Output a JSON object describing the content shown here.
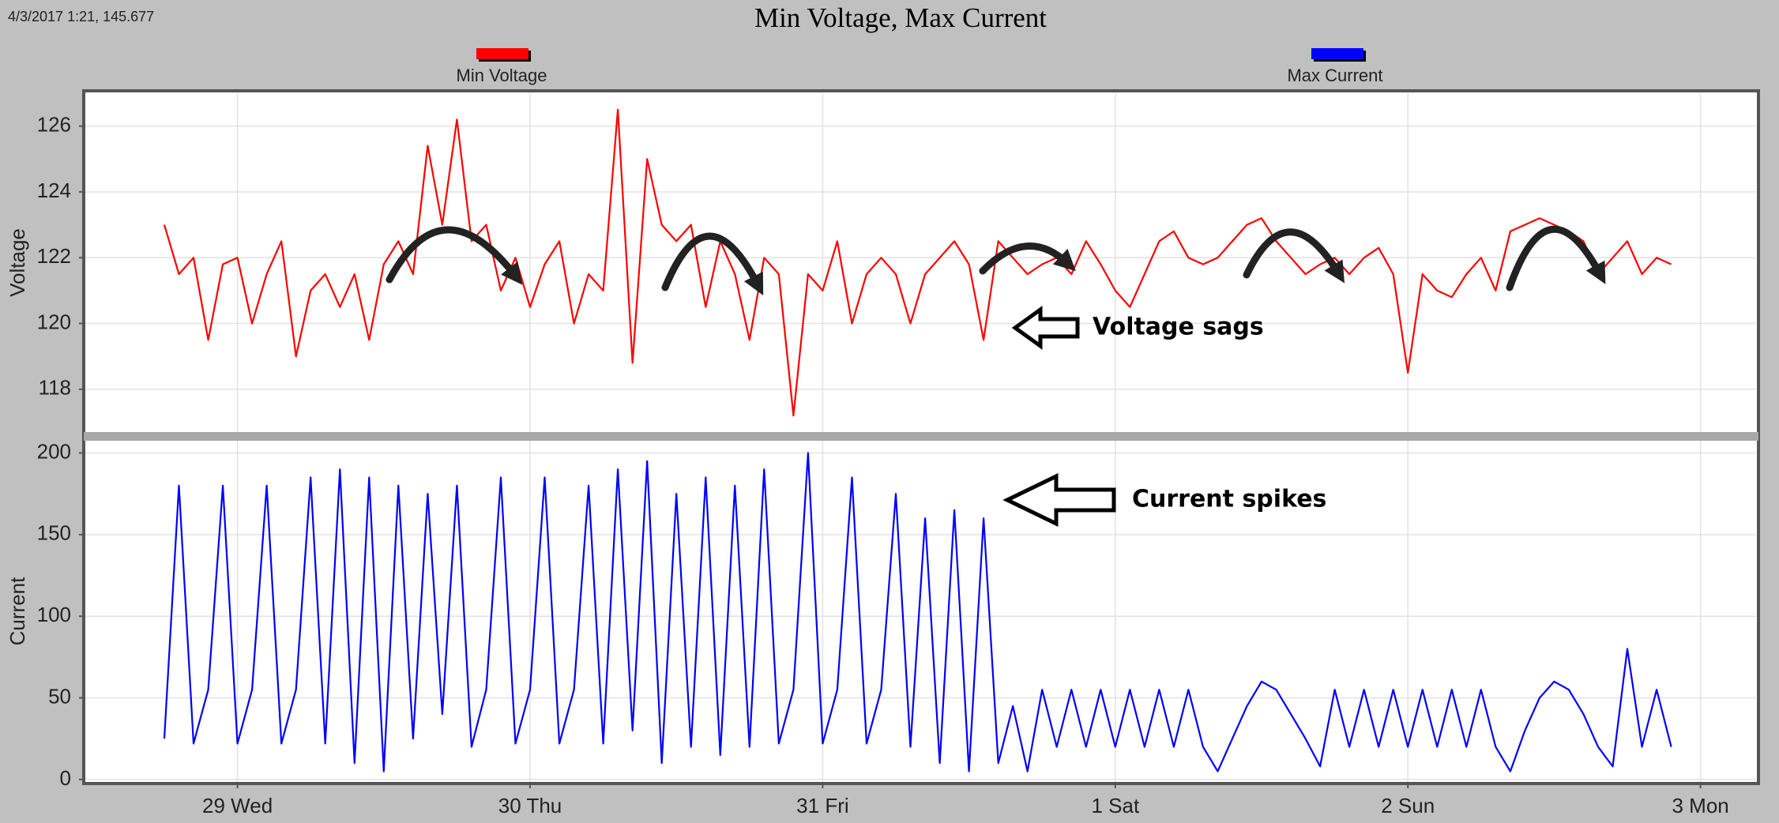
{
  "title": "Min Voltage, Max Current",
  "timestamp": "4/3/2017 1:21, 145.677",
  "chart_data": [
    {
      "type": "line",
      "ylabel": "Voltage",
      "annotation": "Voltage sags",
      "grid": true,
      "xlim": [
        -0.52,
        5.19
      ],
      "ylim": [
        116.7,
        127
      ],
      "yticks": [
        118,
        120,
        122,
        124,
        126
      ],
      "x": [
        -0.25,
        -0.2,
        -0.15,
        -0.1,
        -0.05,
        0,
        0.05,
        0.1,
        0.15,
        0.2,
        0.25,
        0.3,
        0.35,
        0.4,
        0.45,
        0.5,
        0.55,
        0.6,
        0.65,
        0.7,
        0.75,
        0.8,
        0.85,
        0.9,
        0.95,
        1,
        1.05,
        1.1,
        1.15,
        1.2,
        1.25,
        1.3,
        1.35,
        1.4,
        1.45,
        1.5,
        1.55,
        1.6,
        1.65,
        1.7,
        1.75,
        1.8,
        1.85,
        1.9,
        1.95,
        2,
        2.05,
        2.1,
        2.15,
        2.2,
        2.25,
        2.3,
        2.35,
        2.4,
        2.45,
        2.5,
        2.55,
        2.6,
        2.65,
        2.7,
        2.75,
        2.8,
        2.85,
        2.9,
        2.95,
        3,
        3.05,
        3.1,
        3.15,
        3.2,
        3.25,
        3.3,
        3.35,
        3.4,
        3.45,
        3.5,
        3.55,
        3.6,
        3.65,
        3.7,
        3.75,
        3.8,
        3.85,
        3.9,
        3.95,
        4,
        4.05,
        4.1,
        4.15,
        4.2,
        4.25,
        4.3,
        4.35,
        4.4,
        4.45,
        4.5,
        4.55,
        4.6,
        4.65,
        4.7,
        4.75,
        4.8,
        4.85,
        4.9
      ],
      "series": [
        {
          "name": "Min Voltage",
          "color": "#ff0000",
          "values": [
            123,
            121.5,
            122,
            119.5,
            121.8,
            122,
            120,
            121.5,
            122.5,
            119,
            121,
            121.5,
            120.5,
            121.5,
            119.5,
            121.8,
            122.5,
            121.5,
            125.4,
            123,
            126.2,
            122.5,
            123,
            121,
            122,
            120.5,
            121.8,
            122.5,
            120,
            121.5,
            121,
            126.5,
            118.8,
            125,
            123,
            122.5,
            123,
            120.5,
            122.5,
            121.5,
            119.5,
            122,
            121.5,
            117.2,
            121.5,
            121,
            122.5,
            120,
            121.5,
            122,
            121.5,
            120,
            121.5,
            122,
            122.5,
            121.8,
            119.5,
            122.5,
            122,
            121.5,
            121.8,
            122,
            121.5,
            122.5,
            121.8,
            121,
            120.5,
            121.5,
            122.5,
            122.8,
            122,
            121.8,
            122,
            122.5,
            123,
            123.2,
            122.5,
            122,
            121.5,
            121.8,
            122,
            121.5,
            122,
            122.3,
            121.5,
            118.5,
            121.5,
            121,
            120.8,
            121.5,
            122,
            121,
            122.8,
            123,
            123.2,
            123,
            122.8,
            122.5,
            121.5,
            122,
            122.5,
            121.5,
            122,
            121.8
          ]
        }
      ]
    },
    {
      "type": "line",
      "ylabel": "Current",
      "annotation": "Current spikes",
      "grid": true,
      "xlim": [
        -0.52,
        5.19
      ],
      "ylim": [
        -1.5,
        207.5
      ],
      "yticks": [
        0,
        50,
        100,
        150,
        200
      ],
      "xticks": [
        {
          "value": 0,
          "label": "29 Wed"
        },
        {
          "value": 1,
          "label": "30 Thu"
        },
        {
          "value": 2,
          "label": "31 Fri"
        },
        {
          "value": 3,
          "label": "1 Sat"
        },
        {
          "value": 4,
          "label": "2 Sun"
        },
        {
          "value": 5,
          "label": "3 Mon"
        }
      ],
      "x": [
        -0.25,
        -0.2,
        -0.15,
        -0.1,
        -0.05,
        0,
        0.05,
        0.1,
        0.15,
        0.2,
        0.25,
        0.3,
        0.35,
        0.4,
        0.45,
        0.5,
        0.55,
        0.6,
        0.65,
        0.7,
        0.75,
        0.8,
        0.85,
        0.9,
        0.95,
        1,
        1.05,
        1.1,
        1.15,
        1.2,
        1.25,
        1.3,
        1.35,
        1.4,
        1.45,
        1.5,
        1.55,
        1.6,
        1.65,
        1.7,
        1.75,
        1.8,
        1.85,
        1.9,
        1.95,
        2,
        2.05,
        2.1,
        2.15,
        2.2,
        2.25,
        2.3,
        2.35,
        2.4,
        2.45,
        2.5,
        2.55,
        2.6,
        2.65,
        2.7,
        2.75,
        2.8,
        2.85,
        2.9,
        2.95,
        3,
        3.05,
        3.1,
        3.15,
        3.2,
        3.25,
        3.3,
        3.35,
        3.4,
        3.45,
        3.5,
        3.55,
        3.6,
        3.65,
        3.7,
        3.75,
        3.8,
        3.85,
        3.9,
        3.95,
        4,
        4.05,
        4.1,
        4.15,
        4.2,
        4.25,
        4.3,
        4.35,
        4.4,
        4.45,
        4.5,
        4.55,
        4.6,
        4.65,
        4.7,
        4.75,
        4.8,
        4.85,
        4.9
      ],
      "series": [
        {
          "name": "Max Current",
          "color": "#0000ff",
          "values": [
            25,
            180,
            22,
            55,
            180,
            22,
            55,
            180,
            22,
            55,
            185,
            22,
            190,
            10,
            185,
            5,
            180,
            25,
            175,
            40,
            180,
            20,
            55,
            185,
            22,
            55,
            185,
            22,
            55,
            180,
            22,
            190,
            30,
            195,
            10,
            175,
            20,
            185,
            15,
            180,
            20,
            190,
            22,
            55,
            200,
            22,
            55,
            185,
            22,
            55,
            175,
            20,
            160,
            10,
            165,
            5,
            160,
            10,
            45,
            5,
            55,
            20,
            55,
            20,
            55,
            20,
            55,
            20,
            55,
            20,
            55,
            20,
            5,
            25,
            45,
            60,
            55,
            40,
            25,
            8,
            55,
            20,
            55,
            20,
            55,
            20,
            55,
            20,
            55,
            20,
            55,
            20,
            5,
            30,
            50,
            60,
            55,
            40,
            20,
            8,
            80,
            20,
            55,
            20
          ]
        }
      ]
    }
  ]
}
